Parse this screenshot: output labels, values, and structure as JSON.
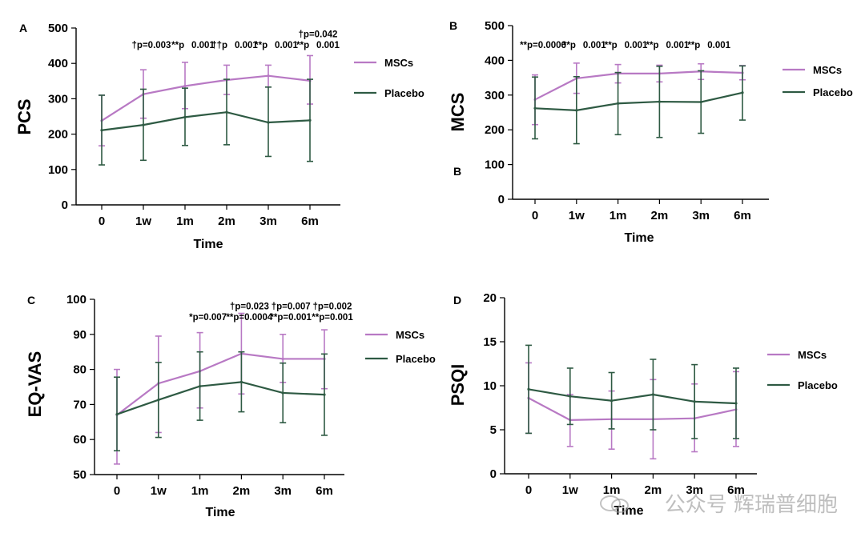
{
  "colors": {
    "msc": "#b879c4",
    "placebo": "#2e5a43",
    "axis": "#000000"
  },
  "watermark": "公众号 辉瑞普细胞",
  "chart_data": [
    {
      "panel": "A",
      "type": "line",
      "ylabel": "PCS",
      "xlabel": "Time",
      "categories": [
        "0",
        "1w",
        "1m",
        "2m",
        "3m",
        "6m"
      ],
      "ylim": [
        0,
        500
      ],
      "yticks": [
        0,
        100,
        200,
        300,
        400,
        500
      ],
      "legend": [
        "MSCs",
        "Placebo"
      ],
      "series": [
        {
          "name": "MSCs",
          "values": [
            238,
            313,
            336,
            353,
            365,
            351
          ],
          "err_upper": [
            310,
            382,
            403,
            395,
            395,
            422
          ],
          "err_lower": [
            167,
            245,
            272,
            312,
            333,
            285
          ]
        },
        {
          "name": "Placebo",
          "values": [
            211,
            226,
            248,
            262,
            233,
            239
          ],
          "err_upper": [
            310,
            327,
            330,
            355,
            333,
            355
          ],
          "err_lower": [
            113,
            126,
            168,
            170,
            137,
            123
          ]
        }
      ],
      "annotations": [
        {
          "cat": "1w",
          "lines": [
            "†p=0.003"
          ]
        },
        {
          "cat": "1m",
          "lines": [
            "**p  0.001"
          ]
        },
        {
          "cat": "2m",
          "lines": [
            "††p  0.001"
          ]
        },
        {
          "cat": "3m",
          "lines": [
            "**p  0.001"
          ]
        },
        {
          "cat": "6m",
          "lines": [
            "†p=0.042",
            "**p  0.001"
          ]
        }
      ]
    },
    {
      "panel": "B",
      "type": "line",
      "ylabel": "MCS",
      "xlabel": "Time",
      "categories": [
        "0",
        "1w",
        "1m",
        "2m",
        "3m",
        "6m"
      ],
      "ylim": [
        0,
        500
      ],
      "yticks": [
        0,
        100,
        200,
        300,
        400,
        500
      ],
      "legend": [
        "MSCs",
        "Placebo"
      ],
      "series": [
        {
          "name": "MSCs",
          "values": [
            287,
            348,
            362,
            362,
            368,
            364
          ],
          "err_upper": [
            358,
            392,
            388,
            386,
            390,
            385
          ],
          "err_lower": [
            215,
            305,
            335,
            338,
            345,
            344
          ]
        },
        {
          "name": "Placebo",
          "values": [
            262,
            256,
            276,
            281,
            280,
            307
          ],
          "err_upper": [
            352,
            353,
            365,
            383,
            370,
            384
          ],
          "err_lower": [
            174,
            160,
            186,
            178,
            190,
            228
          ]
        }
      ],
      "annotations": [
        {
          "cat": "0",
          "lines": [
            "**p=0.0006"
          ]
        },
        {
          "cat": "1w",
          "lines": [
            "**p  0.001"
          ]
        },
        {
          "cat": "1m",
          "lines": [
            "**p  0.001"
          ]
        },
        {
          "cat": "2m",
          "lines": [
            "**p  0.001"
          ]
        },
        {
          "cat": "3m",
          "lines": [
            "**p  0.001"
          ]
        }
      ]
    },
    {
      "panel": "C",
      "type": "line",
      "ylabel": "EQ-VAS",
      "xlabel": "Time",
      "categories": [
        "0",
        "1w",
        "1m",
        "2m",
        "3m",
        "6m"
      ],
      "ylim": [
        50,
        100
      ],
      "yticks": [
        50,
        60,
        70,
        80,
        90,
        100
      ],
      "legend": [
        "MSCs",
        "Placebo"
      ],
      "series": [
        {
          "name": "MSCs",
          "values": [
            67,
            76,
            79.5,
            84.5,
            83,
            83
          ],
          "err_upper": [
            80,
            89.5,
            90.5,
            96,
            90,
            91.3
          ],
          "err_lower": [
            53,
            62,
            69,
            73,
            76.3,
            74.5
          ]
        },
        {
          "name": "Placebo",
          "values": [
            67.2,
            71.3,
            75.2,
            76.4,
            73.3,
            72.8
          ],
          "err_upper": [
            77.8,
            82,
            85,
            85,
            81.8,
            84.4
          ],
          "err_lower": [
            56.8,
            60.6,
            65.5,
            67.9,
            64.8,
            61.2
          ]
        }
      ],
      "annotations": [
        {
          "cat": "1m",
          "lines": [
            "*p=0.007"
          ]
        },
        {
          "cat": "2m",
          "lines": [
            "†p=0.023",
            "**p=0.0004"
          ]
        },
        {
          "cat": "3m",
          "lines": [
            "†p=0.007",
            "**p=0.001"
          ]
        },
        {
          "cat": "6m",
          "lines": [
            "†p=0.002",
            "**p=0.001"
          ]
        }
      ]
    },
    {
      "panel": "D",
      "type": "line",
      "ylabel": "PSQI",
      "xlabel": "Time",
      "categories": [
        "0",
        "1w",
        "1m",
        "2m",
        "3m",
        "6m"
      ],
      "ylim": [
        0,
        20
      ],
      "yticks": [
        0,
        5,
        10,
        15,
        20
      ],
      "legend": [
        "MSCs",
        "Placebo"
      ],
      "series": [
        {
          "name": "MSCs",
          "values": [
            8.6,
            6.1,
            6.2,
            6.2,
            6.3,
            7.3
          ],
          "err_upper": [
            12.6,
            9.0,
            9.4,
            10.7,
            10.2,
            11.6
          ],
          "err_lower": [
            4.6,
            3.1,
            2.8,
            1.7,
            2.5,
            3.1
          ]
        },
        {
          "name": "Placebo",
          "values": [
            9.6,
            8.8,
            8.3,
            9.0,
            8.2,
            8.0
          ],
          "err_upper": [
            14.6,
            12.0,
            11.5,
            13.0,
            12.4,
            12.0
          ],
          "err_lower": [
            4.6,
            5.6,
            5.1,
            5.0,
            4.0,
            4.0
          ]
        }
      ],
      "annotations": []
    }
  ]
}
